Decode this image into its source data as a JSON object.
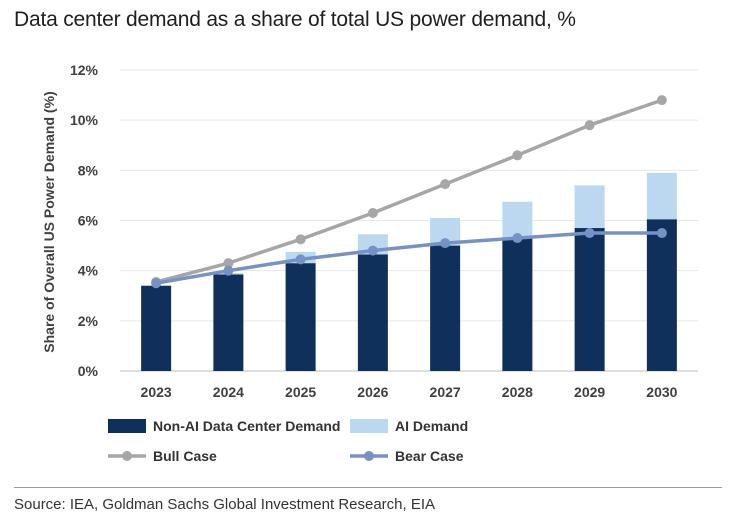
{
  "title": "Data center demand as a share of total US power demand, %",
  "source": "Source: IEA, Goldman Sachs Global Investment Research, EIA",
  "chart_data": {
    "type": "bar",
    "stacked": true,
    "ylabel": "Share of Overall US Power Demand (%)",
    "ylim": [
      0,
      12
    ],
    "yticks": [
      0,
      2,
      4,
      6,
      8,
      10,
      12
    ],
    "ytick_labels": [
      "0%",
      "2%",
      "4%",
      "6%",
      "8%",
      "10%",
      "12%"
    ],
    "categories": [
      "2023",
      "2024",
      "2025",
      "2026",
      "2027",
      "2028",
      "2029",
      "2030"
    ],
    "series": [
      {
        "name": "Non-AI Data Center Demand",
        "kind": "bar",
        "color": "#10305c",
        "values": [
          3.4,
          3.85,
          4.3,
          4.65,
          5.0,
          5.3,
          5.7,
          6.05
        ]
      },
      {
        "name": "AI Demand",
        "kind": "bar",
        "color": "#bcd7f0",
        "values": [
          0.0,
          0.05,
          0.45,
          0.8,
          1.1,
          1.45,
          1.7,
          1.85
        ]
      },
      {
        "name": "Bull Case",
        "kind": "line",
        "color": "#a6a6a6",
        "values": [
          3.55,
          4.3,
          5.25,
          6.3,
          7.45,
          8.6,
          9.8,
          10.8
        ]
      },
      {
        "name": "Bear Case",
        "kind": "line",
        "color": "#7691c6",
        "values": [
          3.5,
          4.0,
          4.45,
          4.8,
          5.1,
          5.3,
          5.5,
          5.5
        ]
      }
    ],
    "legend": [
      "Non-AI Data Center Demand",
      "AI Demand",
      "Bull Case",
      "Bear Case"
    ],
    "legend_position": "bottom"
  }
}
